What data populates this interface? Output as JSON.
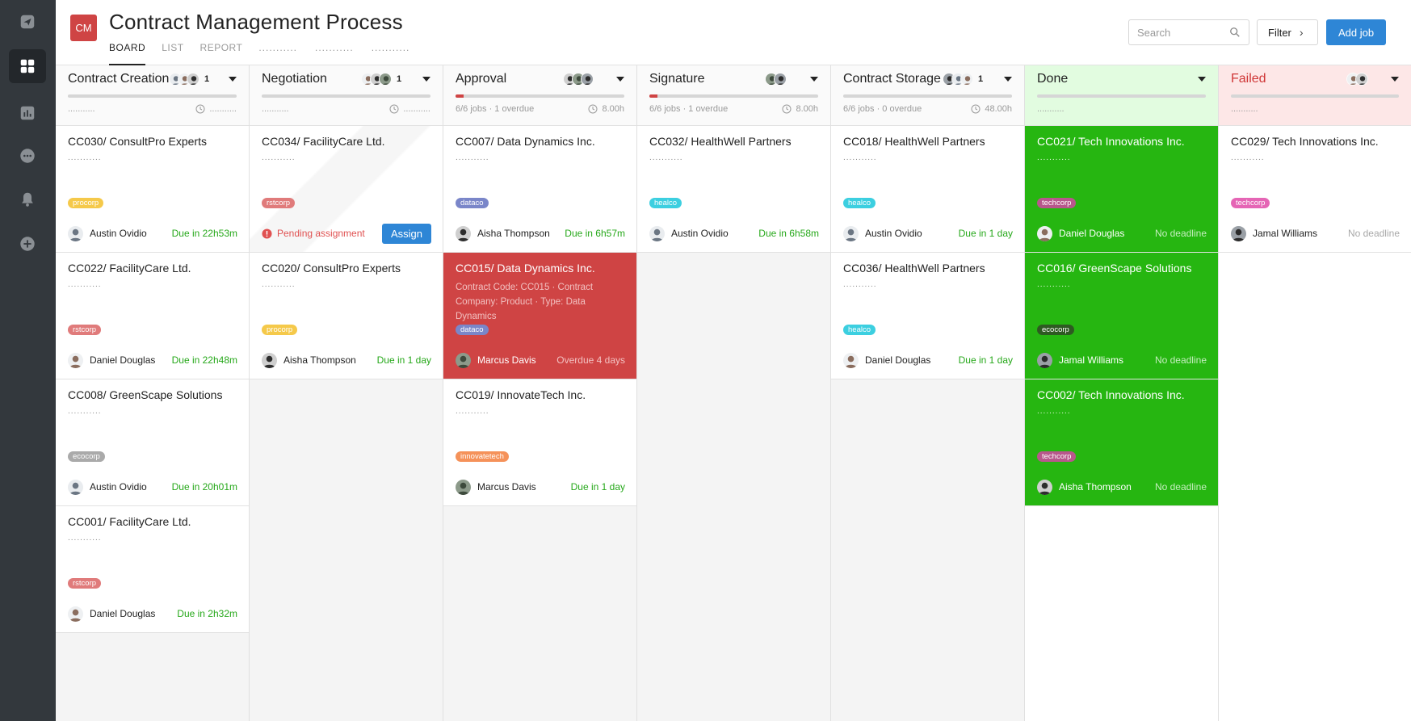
{
  "header": {
    "badge": "CM",
    "title": "Contract Management Process",
    "tabs": [
      {
        "label": "BOARD",
        "active": true
      },
      {
        "label": "LIST",
        "active": false
      },
      {
        "label": "REPORT",
        "active": false
      },
      {
        "label": "...........",
        "active": false
      },
      {
        "label": "...........",
        "active": false
      },
      {
        "label": "...........",
        "active": false
      }
    ],
    "search_placeholder": "Search",
    "filter_label": "Filter",
    "add_job_label": "Add job"
  },
  "sidebar": {
    "items": [
      {
        "name": "send-icon",
        "active": false
      },
      {
        "name": "grid-icon",
        "active": true
      },
      {
        "name": "chart-icon",
        "active": false
      },
      {
        "name": "more-icon",
        "active": false
      },
      {
        "name": "bell-icon",
        "active": false
      },
      {
        "name": "add-icon",
        "active": false
      }
    ]
  },
  "colors": {
    "accent": "#2e86d6",
    "danger": "#cf4444",
    "success": "#26b611",
    "due_green": "#26a81a"
  },
  "columns": [
    {
      "id": "contract-creation",
      "title": "Contract Creation",
      "count": "1",
      "avatars": 3,
      "progress": 0,
      "meta": "...........",
      "time": "...........",
      "cards": [
        {
          "title": "CC030/ ConsultPro Experts",
          "sub": "...........",
          "tag": "procorp",
          "tag_color": "#f5c94a",
          "assignee": "Austin Ovidio",
          "avatar": 0,
          "due": "Due in 22h53m",
          "style": "normal"
        },
        {
          "title": "CC022/ FacilityCare Ltd.",
          "sub": "...........",
          "tag": "rstcorp",
          "tag_color": "#e07b7b",
          "assignee": "Daniel Douglas",
          "avatar": 1,
          "due": "Due in 22h48m",
          "style": "normal"
        },
        {
          "title": "CC008/ GreenScape Solutions",
          "sub": "...........",
          "tag": "ecocorp",
          "tag_color": "#aaaaaa",
          "assignee": "Austin Ovidio",
          "avatar": 0,
          "due": "Due in 20h01m",
          "style": "normal"
        },
        {
          "title": "CC001/ FacilityCare Ltd.",
          "sub": "...........",
          "tag": "rstcorp",
          "tag_color": "#e07b7b",
          "assignee": "Daniel Douglas",
          "avatar": 1,
          "due": "Due in 2h32m",
          "style": "normal"
        }
      ]
    },
    {
      "id": "negotiation",
      "title": "Negotiation",
      "count": "1",
      "avatars": 3,
      "progress": 0,
      "meta": "...........",
      "time": "...........",
      "cards": [
        {
          "title": "CC034/ FacilityCare Ltd.",
          "sub": "...........",
          "tag": "rstcorp",
          "tag_color": "#e07b7b",
          "style": "pending",
          "pending_label": "Pending assignment",
          "assign_label": "Assign"
        },
        {
          "title": "CC020/ ConsultPro Experts",
          "sub": "...........",
          "tag": "procorp",
          "tag_color": "#f5c94a",
          "assignee": "Aisha Thompson",
          "avatar": 2,
          "due": "Due in 1 day",
          "style": "normal"
        }
      ]
    },
    {
      "id": "approval",
      "title": "Approval",
      "count": "",
      "avatars": 3,
      "progress": 0.05,
      "meta": "6/6 jobs · 1 overdue",
      "time": "8.00h",
      "cards": [
        {
          "title": "CC007/ Data Dynamics Inc.",
          "sub": "...........",
          "tag": "dataco",
          "tag_color": "#7a86c9",
          "assignee": "Aisha Thompson",
          "avatar": 2,
          "due": "Due in 6h57m",
          "style": "normal"
        },
        {
          "title": "CC015/ Data Dynamics Inc.",
          "desc": "Contract Code: CC015 · Contract Company: Product · Type: Data Dynamics",
          "tag": "dataco",
          "tag_color": "#7a86c9",
          "assignee": "Marcus Davis",
          "avatar": 3,
          "due": "Overdue 4 days",
          "style": "red"
        },
        {
          "title": "CC019/ InnovateTech Inc.",
          "sub": "...........",
          "tag": "innovatetech",
          "tag_color": "#f5925a",
          "assignee": "Marcus Davis",
          "avatar": 3,
          "due": "Due in 1 day",
          "style": "normal"
        }
      ]
    },
    {
      "id": "signature",
      "title": "Signature",
      "count": "",
      "avatars": 2,
      "progress": 0.05,
      "meta": "6/6 jobs · 1 overdue",
      "time": "8.00h",
      "cards": [
        {
          "title": "CC032/ HealthWell Partners",
          "sub": "...........",
          "tag": "healco",
          "tag_color": "#3ccfe0",
          "assignee": "Austin Ovidio",
          "avatar": 0,
          "due": "Due in 6h58m",
          "style": "normal"
        }
      ]
    },
    {
      "id": "contract-storage",
      "title": "Contract Storage",
      "count": "1",
      "avatars": 3,
      "progress": 0,
      "meta": "6/6 jobs · 0 overdue",
      "time": "48.00h",
      "cards": [
        {
          "title": "CC018/ HealthWell Partners",
          "sub": "...........",
          "tag": "healco",
          "tag_color": "#3ccfe0",
          "assignee": "Austin Ovidio",
          "avatar": 0,
          "due": "Due in 1 day",
          "style": "normal"
        },
        {
          "title": "CC036/ HealthWell Partners",
          "sub": "...........",
          "tag": "healco",
          "tag_color": "#3ccfe0",
          "assignee": "Daniel Douglas",
          "avatar": 1,
          "due": "Due in 1 day",
          "style": "normal"
        }
      ]
    },
    {
      "id": "done",
      "title": "Done",
      "count": "",
      "avatars": 0,
      "progress": 0,
      "meta": "...........",
      "time": "",
      "cards": [
        {
          "title": "CC021/ Tech Innovations Inc.",
          "sub": "...........",
          "tag": "techcorp",
          "tag_color": "#b8578c",
          "assignee": "Daniel Douglas",
          "avatar": 1,
          "due": "No deadline",
          "style": "green"
        },
        {
          "title": "CC016/ GreenScape Solutions",
          "sub": "...........",
          "tag": "ecocorp",
          "tag_color": "#2e5a22",
          "assignee": "Jamal Williams",
          "avatar": 4,
          "due": "No deadline",
          "style": "green"
        },
        {
          "title": "CC002/ Tech Innovations Inc.",
          "sub": "...........",
          "tag": "techcorp",
          "tag_color": "#b8578c",
          "assignee": "Aisha Thompson",
          "avatar": 2,
          "due": "No deadline",
          "style": "green"
        }
      ]
    },
    {
      "id": "failed",
      "title": "Failed",
      "count": "",
      "avatars": 2,
      "progress": 0,
      "meta": "...........",
      "time": "",
      "cards": [
        {
          "title": "CC029/ Tech Innovations Inc.",
          "sub": "...........",
          "tag": "techcorp",
          "tag_color": "#e565b5",
          "assignee": "Jamal Williams",
          "avatar": 4,
          "due": "No deadline",
          "style": "normal"
        }
      ]
    }
  ]
}
